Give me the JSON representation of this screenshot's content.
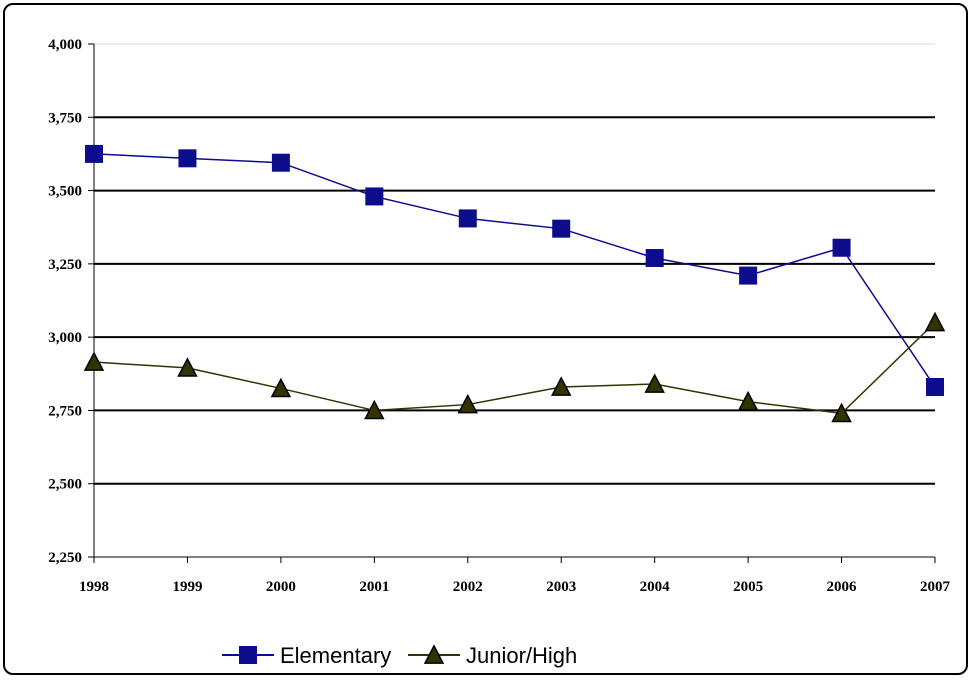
{
  "chart_data": {
    "type": "line",
    "x": [
      "1998",
      "1999",
      "2000",
      "2001",
      "2002",
      "2003",
      "2004",
      "2005",
      "2006",
      "2007"
    ],
    "ylim": [
      2250,
      4000
    ],
    "yticks": [
      "4,000",
      "3,750",
      "3,500",
      "3,250",
      "3,000",
      "2,750",
      "2,500",
      "2,250"
    ],
    "ytick_values": [
      4000,
      3750,
      3500,
      3250,
      3000,
      2750,
      2500,
      2250
    ],
    "grid": true,
    "legend_position": "bottom",
    "series": [
      {
        "name": "Elementary",
        "marker": "square",
        "color": "#0c0c8c",
        "values": [
          3625,
          3610,
          3595,
          3480,
          3405,
          3370,
          3270,
          3210,
          3305,
          2830
        ]
      },
      {
        "name": "Junior/High",
        "marker": "triangle",
        "color": "#333300",
        "values": [
          2915,
          2895,
          2825,
          2750,
          2770,
          2830,
          2840,
          2780,
          2740,
          3050
        ]
      }
    ]
  }
}
